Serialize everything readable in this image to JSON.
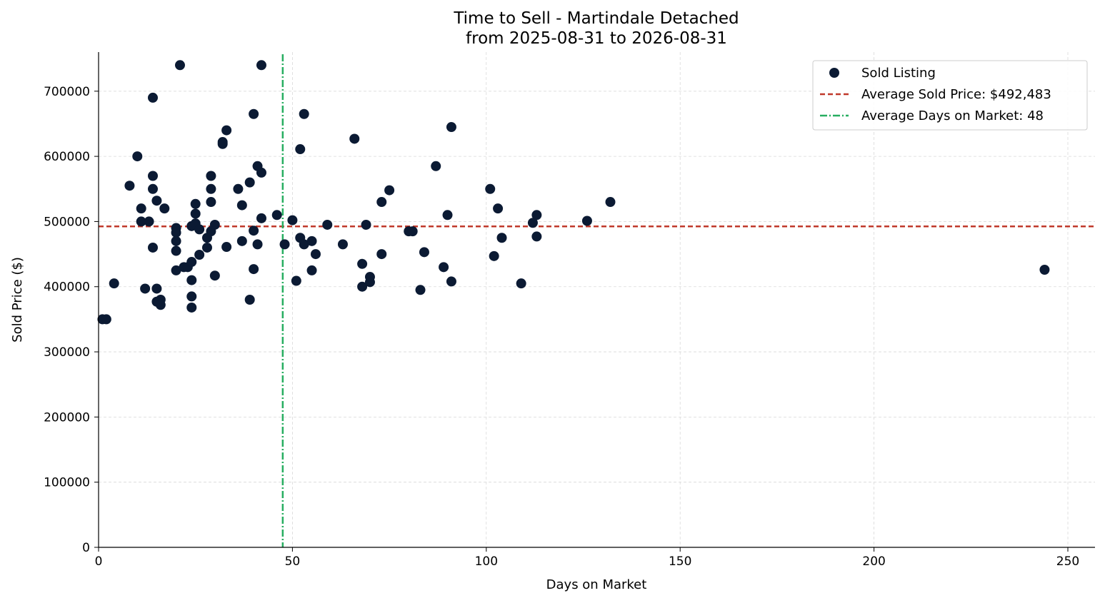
{
  "chart_data": {
    "type": "scatter",
    "title": "Time to Sell - Martindale Detached",
    "subtitle": "from 2025-08-31 to 2026-08-31",
    "xlabel": "Days on Market",
    "ylabel": "Sold Price ($)",
    "xlim": [
      0,
      257
    ],
    "ylim": [
      0,
      760000
    ],
    "x_ticks": [
      0,
      50,
      100,
      150,
      200,
      250
    ],
    "y_ticks": [
      0,
      100000,
      200000,
      300000,
      400000,
      500000,
      600000,
      700000
    ],
    "grid": true,
    "legend_position": "top-right",
    "colors": {
      "points": "#0b1a33",
      "avg_price_line": "#c0392b",
      "avg_days_line": "#27ae60",
      "grid": "#d9d9d9",
      "axis": "#000000"
    },
    "series": [
      {
        "name": "Sold Listing",
        "points": [
          {
            "x": 1,
            "y": 350000
          },
          {
            "x": 2,
            "y": 350000
          },
          {
            "x": 4,
            "y": 405000
          },
          {
            "x": 8,
            "y": 555000
          },
          {
            "x": 10,
            "y": 600000
          },
          {
            "x": 11,
            "y": 520000
          },
          {
            "x": 11,
            "y": 500000
          },
          {
            "x": 12,
            "y": 397000
          },
          {
            "x": 13,
            "y": 500000
          },
          {
            "x": 14,
            "y": 690000
          },
          {
            "x": 14,
            "y": 570000
          },
          {
            "x": 14,
            "y": 550000
          },
          {
            "x": 14,
            "y": 460000
          },
          {
            "x": 15,
            "y": 532000
          },
          {
            "x": 15,
            "y": 397000
          },
          {
            "x": 15,
            "y": 377000
          },
          {
            "x": 16,
            "y": 380000
          },
          {
            "x": 16,
            "y": 372000
          },
          {
            "x": 17,
            "y": 520000
          },
          {
            "x": 20,
            "y": 490000
          },
          {
            "x": 20,
            "y": 483000
          },
          {
            "x": 20,
            "y": 470000
          },
          {
            "x": 20,
            "y": 455000
          },
          {
            "x": 20,
            "y": 425000
          },
          {
            "x": 21,
            "y": 740000
          },
          {
            "x": 22,
            "y": 430000
          },
          {
            "x": 23,
            "y": 430000
          },
          {
            "x": 24,
            "y": 493000
          },
          {
            "x": 24,
            "y": 438000
          },
          {
            "x": 24,
            "y": 410000
          },
          {
            "x": 24,
            "y": 385000
          },
          {
            "x": 24,
            "y": 368000
          },
          {
            "x": 25,
            "y": 527000
          },
          {
            "x": 25,
            "y": 512000
          },
          {
            "x": 25,
            "y": 497000
          },
          {
            "x": 26,
            "y": 488000
          },
          {
            "x": 26,
            "y": 449000
          },
          {
            "x": 28,
            "y": 475000
          },
          {
            "x": 28,
            "y": 460000
          },
          {
            "x": 29,
            "y": 570000
          },
          {
            "x": 29,
            "y": 550000
          },
          {
            "x": 29,
            "y": 530000
          },
          {
            "x": 29,
            "y": 485000
          },
          {
            "x": 30,
            "y": 495000
          },
          {
            "x": 30,
            "y": 417000
          },
          {
            "x": 32,
            "y": 622000
          },
          {
            "x": 32,
            "y": 619000
          },
          {
            "x": 33,
            "y": 640000
          },
          {
            "x": 33,
            "y": 461000
          },
          {
            "x": 36,
            "y": 550000
          },
          {
            "x": 37,
            "y": 525000
          },
          {
            "x": 37,
            "y": 470000
          },
          {
            "x": 39,
            "y": 560000
          },
          {
            "x": 39,
            "y": 380000
          },
          {
            "x": 40,
            "y": 665000
          },
          {
            "x": 40,
            "y": 486000
          },
          {
            "x": 40,
            "y": 427000
          },
          {
            "x": 41,
            "y": 585000
          },
          {
            "x": 41,
            "y": 465000
          },
          {
            "x": 42,
            "y": 740000
          },
          {
            "x": 42,
            "y": 575000
          },
          {
            "x": 42,
            "y": 505000
          },
          {
            "x": 46,
            "y": 510000
          },
          {
            "x": 48,
            "y": 465000
          },
          {
            "x": 50,
            "y": 502000
          },
          {
            "x": 51,
            "y": 409000
          },
          {
            "x": 52,
            "y": 611000
          },
          {
            "x": 52,
            "y": 475000
          },
          {
            "x": 53,
            "y": 665000
          },
          {
            "x": 53,
            "y": 465000
          },
          {
            "x": 55,
            "y": 470000
          },
          {
            "x": 55,
            "y": 425000
          },
          {
            "x": 56,
            "y": 450000
          },
          {
            "x": 59,
            "y": 495000
          },
          {
            "x": 63,
            "y": 465000
          },
          {
            "x": 66,
            "y": 627000
          },
          {
            "x": 68,
            "y": 435000
          },
          {
            "x": 68,
            "y": 400000
          },
          {
            "x": 69,
            "y": 495000
          },
          {
            "x": 70,
            "y": 415000
          },
          {
            "x": 70,
            "y": 407000
          },
          {
            "x": 73,
            "y": 530000
          },
          {
            "x": 73,
            "y": 450000
          },
          {
            "x": 75,
            "y": 548000
          },
          {
            "x": 80,
            "y": 485000
          },
          {
            "x": 81,
            "y": 485000
          },
          {
            "x": 83,
            "y": 395000
          },
          {
            "x": 84,
            "y": 453000
          },
          {
            "x": 87,
            "y": 585000
          },
          {
            "x": 89,
            "y": 430000
          },
          {
            "x": 90,
            "y": 510000
          },
          {
            "x": 91,
            "y": 645000
          },
          {
            "x": 91,
            "y": 408000
          },
          {
            "x": 101,
            "y": 550000
          },
          {
            "x": 102,
            "y": 447000
          },
          {
            "x": 103,
            "y": 520000
          },
          {
            "x": 104,
            "y": 475000
          },
          {
            "x": 109,
            "y": 405000
          },
          {
            "x": 112,
            "y": 498000
          },
          {
            "x": 113,
            "y": 510000
          },
          {
            "x": 113,
            "y": 477000
          },
          {
            "x": 126,
            "y": 501000
          },
          {
            "x": 132,
            "y": 530000
          },
          {
            "x": 244,
            "y": 426000
          }
        ]
      }
    ],
    "reference_lines": [
      {
        "name": "Average Sold Price: $492,483",
        "orientation": "horizontal",
        "value": 492483,
        "style": "dashed"
      },
      {
        "name": "Average Days on Market: 48",
        "orientation": "vertical",
        "value": 47.5,
        "style": "dashdot"
      }
    ]
  }
}
